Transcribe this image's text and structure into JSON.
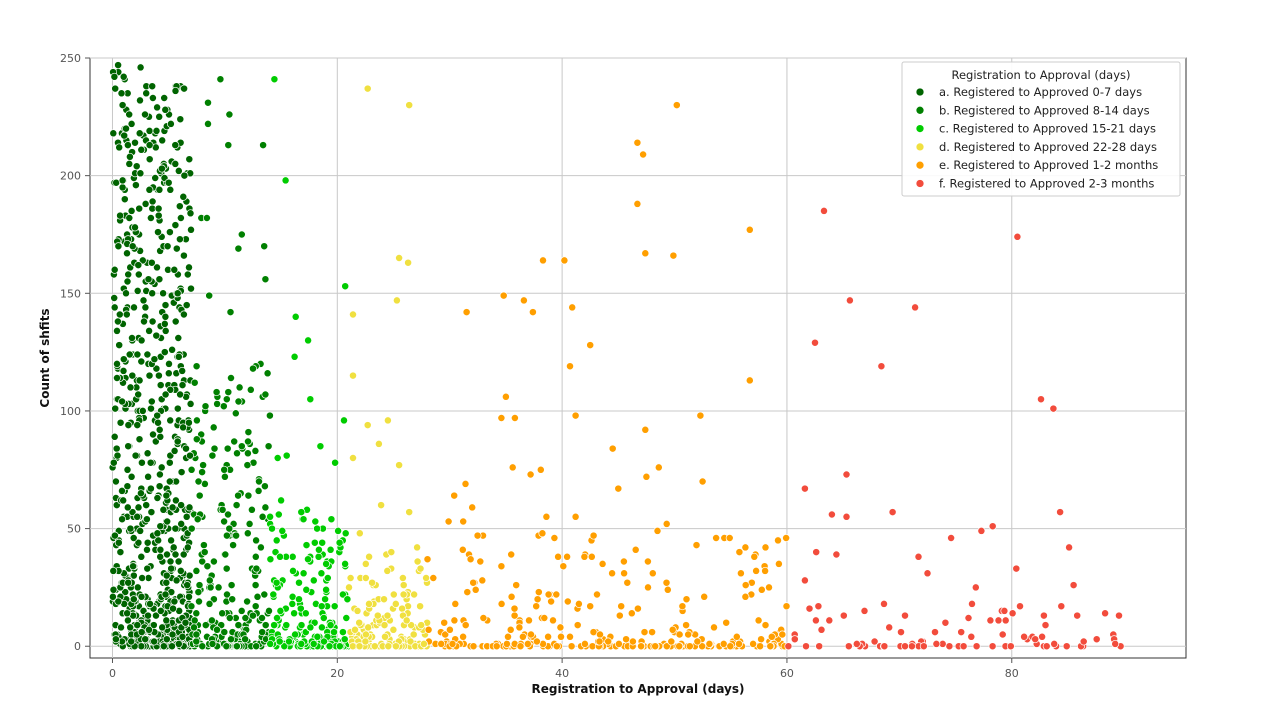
{
  "chart_data": {
    "type": "scatter",
    "title": "",
    "xlabel": "Registration to Approval (days)",
    "ylabel": "Count of shfits",
    "xlim": [
      -2,
      95.5
    ],
    "ylim": [
      -5,
      250
    ],
    "xticks": [
      0,
      20,
      40,
      60,
      80
    ],
    "yticks": [
      0,
      50,
      100,
      150,
      200,
      250
    ],
    "grid": true,
    "legend": {
      "title": "Registration to Approval (days)",
      "placement": "top-right"
    },
    "series": [
      {
        "name": "a. Registered to Approved 0-7 days",
        "color": "#006400",
        "x_range": [
          0,
          7
        ],
        "points": [
          [
            0.5,
            247
          ],
          [
            1.0,
            242
          ],
          [
            0.8,
            235
          ],
          [
            1.2,
            220
          ],
          [
            0.6,
            212
          ],
          [
            1.5,
            205
          ],
          [
            0.9,
            198
          ],
          [
            1.1,
            190
          ],
          [
            2.5,
            246
          ],
          [
            3.0,
            235
          ],
          [
            3.6,
            233
          ],
          [
            4.6,
            233
          ],
          [
            4.7,
            228
          ],
          [
            5.2,
            222
          ],
          [
            3.3,
            213
          ],
          [
            4.4,
            203
          ],
          [
            3.8,
            199
          ],
          [
            5.0,
            197
          ],
          [
            4.1,
            186
          ],
          [
            6.3,
            191
          ],
          [
            6.4,
            200
          ],
          [
            5.6,
            179
          ],
          [
            6.0,
            173
          ],
          [
            4.9,
            170
          ],
          [
            5.5,
            160
          ],
          [
            2.0,
            178
          ],
          [
            1.8,
            170
          ],
          [
            2.3,
            162
          ],
          [
            3.2,
            156
          ],
          [
            4.5,
            150
          ],
          [
            5.8,
            150
          ],
          [
            6.6,
            145
          ],
          [
            2.9,
            140
          ],
          [
            3.9,
            132
          ],
          [
            5.3,
            126
          ],
          [
            6.2,
            117
          ],
          [
            1.6,
            110
          ],
          [
            2.7,
            100
          ],
          [
            4.2,
            92
          ],
          [
            6.8,
            95
          ],
          [
            1.4,
            85
          ],
          [
            3.4,
            78
          ],
          [
            5.1,
            70
          ],
          [
            6.1,
            60
          ],
          [
            2.2,
            55
          ],
          [
            4.0,
            48
          ],
          [
            0.7,
            40
          ],
          [
            3.1,
            33
          ],
          [
            5.7,
            28
          ],
          [
            1.9,
            20
          ],
          [
            4.3,
            15
          ],
          [
            6.5,
            10
          ],
          [
            2.6,
            6
          ],
          [
            0.3,
            3
          ],
          [
            3.7,
            2
          ],
          [
            5.9,
            1
          ],
          [
            1.3,
            14
          ],
          [
            6.7,
            42
          ],
          [
            4.8,
            64
          ],
          [
            2.4,
            88
          ],
          [
            3.5,
            104
          ],
          [
            0.4,
            120
          ],
          [
            6.9,
            81
          ],
          [
            2.8,
            138
          ],
          [
            0.2,
            160
          ],
          [
            1.7,
            72
          ]
        ]
      },
      {
        "name": "b. Registered to Approved 8-14 days",
        "color": "#008000",
        "x_range": [
          7,
          14
        ],
        "points": [
          [
            8.5,
            231
          ],
          [
            8.5,
            222
          ],
          [
            9.6,
            241
          ],
          [
            10.4,
            226
          ],
          [
            10.3,
            213
          ],
          [
            13.4,
            213
          ],
          [
            7.9,
            182
          ],
          [
            8.4,
            182
          ],
          [
            11.5,
            175
          ],
          [
            13.5,
            170
          ],
          [
            11.2,
            169
          ],
          [
            13.6,
            156
          ],
          [
            8.6,
            149
          ],
          [
            10.5,
            142
          ],
          [
            12.5,
            118
          ],
          [
            10.3,
            108
          ],
          [
            13.8,
            116
          ],
          [
            11.5,
            85
          ],
          [
            14.0,
            98
          ],
          [
            9.0,
            93
          ],
          [
            7.5,
            88
          ],
          [
            12.0,
            77
          ],
          [
            13.0,
            66
          ],
          [
            9.8,
            58
          ],
          [
            11.0,
            47
          ],
          [
            8.2,
            40
          ],
          [
            12.8,
            33
          ],
          [
            10.6,
            26
          ],
          [
            7.7,
            19
          ],
          [
            13.3,
            12
          ],
          [
            9.3,
            7
          ],
          [
            11.8,
            3
          ],
          [
            8.9,
            1
          ],
          [
            12.2,
            52
          ],
          [
            10.0,
            72
          ]
        ]
      },
      {
        "name": "c. Registered to Approved 15-21 days",
        "color": "#00cc00",
        "x_range": [
          14,
          21
        ],
        "points": [
          [
            14.4,
            241
          ],
          [
            15.4,
            198
          ],
          [
            20.7,
            153
          ],
          [
            16.3,
            140
          ],
          [
            17.4,
            130
          ],
          [
            16.2,
            123
          ],
          [
            17.6,
            105
          ],
          [
            20.6,
            96
          ],
          [
            14.7,
            80
          ],
          [
            15.5,
            81
          ],
          [
            18.5,
            85
          ],
          [
            19.8,
            78
          ],
          [
            15.0,
            62
          ],
          [
            16.8,
            57
          ],
          [
            18.2,
            50
          ],
          [
            20.2,
            44
          ],
          [
            14.9,
            38
          ],
          [
            17.0,
            31
          ],
          [
            19.0,
            24
          ],
          [
            16.0,
            18
          ],
          [
            18.8,
            12
          ],
          [
            20.5,
            6
          ],
          [
            15.7,
            2
          ],
          [
            17.9,
            1
          ],
          [
            19.4,
            9
          ],
          [
            14.6,
            27
          ],
          [
            20.9,
            20
          ]
        ]
      },
      {
        "name": "d. Registered to Approved 22-28 days",
        "color": "#f0e040",
        "x_range": [
          21,
          28
        ],
        "points": [
          [
            22.7,
            237
          ],
          [
            26.4,
            230
          ],
          [
            25.5,
            165
          ],
          [
            26.3,
            163
          ],
          [
            25.3,
            147
          ],
          [
            21.4,
            141
          ],
          [
            21.4,
            115
          ],
          [
            24.5,
            96
          ],
          [
            22.7,
            94
          ],
          [
            23.7,
            86
          ],
          [
            25.5,
            77
          ],
          [
            21.4,
            80
          ],
          [
            23.9,
            60
          ],
          [
            26.4,
            57
          ],
          [
            22.0,
            48
          ],
          [
            24.8,
            40
          ],
          [
            27.4,
            33
          ],
          [
            23.1,
            27
          ],
          [
            25.9,
            22
          ],
          [
            21.8,
            15
          ],
          [
            24.2,
            9
          ],
          [
            26.8,
            5
          ],
          [
            22.5,
            2
          ],
          [
            27.7,
            1
          ],
          [
            23.6,
            13
          ],
          [
            25.2,
            18
          ],
          [
            27.1,
            42
          ]
        ]
      },
      {
        "name": "e. Registered to Approved 1-2 months",
        "color": "#ff9f00",
        "x_range": [
          28,
          60
        ],
        "points": [
          [
            50.2,
            230
          ],
          [
            46.7,
            214
          ],
          [
            47.2,
            209
          ],
          [
            46.7,
            188
          ],
          [
            47.4,
            167
          ],
          [
            56.7,
            177
          ],
          [
            49.9,
            166
          ],
          [
            40.2,
            164
          ],
          [
            38.3,
            164
          ],
          [
            34.8,
            149
          ],
          [
            36.6,
            147
          ],
          [
            37.4,
            142
          ],
          [
            40.9,
            144
          ],
          [
            31.5,
            142
          ],
          [
            42.5,
            128
          ],
          [
            40.7,
            119
          ],
          [
            56.7,
            113
          ],
          [
            35.0,
            106
          ],
          [
            34.6,
            97
          ],
          [
            35.8,
            97
          ],
          [
            41.2,
            98
          ],
          [
            52.3,
            98
          ],
          [
            47.4,
            92
          ],
          [
            44.5,
            84
          ],
          [
            48.6,
            76
          ],
          [
            47.5,
            72
          ],
          [
            35.6,
            76
          ],
          [
            37.2,
            73
          ],
          [
            38.1,
            75
          ],
          [
            52.5,
            70
          ],
          [
            31.4,
            69
          ],
          [
            45.0,
            67
          ],
          [
            30.4,
            64
          ],
          [
            32.0,
            59
          ],
          [
            49.3,
            52
          ],
          [
            38.6,
            55
          ],
          [
            41.2,
            55
          ],
          [
            29.9,
            53
          ],
          [
            31.2,
            53
          ],
          [
            53.7,
            46
          ],
          [
            56.3,
            42
          ],
          [
            57.1,
            38
          ],
          [
            55.9,
            31
          ],
          [
            45.8,
            27
          ],
          [
            50.7,
            17
          ],
          [
            38.8,
            22
          ],
          [
            34.6,
            34
          ],
          [
            42.8,
            47
          ],
          [
            33.0,
            12
          ],
          [
            36.2,
            8
          ],
          [
            39.9,
            4
          ],
          [
            44.1,
            2
          ],
          [
            48.0,
            6
          ],
          [
            53.1,
            1
          ],
          [
            58.4,
            25
          ],
          [
            30.5,
            18
          ],
          [
            46.2,
            14
          ],
          [
            54.6,
            10
          ],
          [
            59.2,
            45
          ],
          [
            43.6,
            35
          ]
        ]
      },
      {
        "name": "f. Registered to Approved 2-3 months",
        "color": "#f24c3c",
        "x_range": [
          60,
          90
        ],
        "points": [
          [
            63.3,
            185
          ],
          [
            80.5,
            174
          ],
          [
            65.6,
            147
          ],
          [
            71.4,
            144
          ],
          [
            62.5,
            129
          ],
          [
            68.4,
            119
          ],
          [
            82.6,
            105
          ],
          [
            83.7,
            101
          ],
          [
            65.3,
            73
          ],
          [
            61.6,
            67
          ],
          [
            69.4,
            57
          ],
          [
            84.3,
            57
          ],
          [
            64.0,
            56
          ],
          [
            78.3,
            51
          ],
          [
            65.3,
            55
          ],
          [
            71.7,
            38
          ],
          [
            62.6,
            40
          ],
          [
            64.4,
            39
          ],
          [
            74.6,
            46
          ],
          [
            77.3,
            49
          ],
          [
            85.1,
            42
          ],
          [
            80.4,
            33
          ],
          [
            72.5,
            31
          ],
          [
            76.8,
            25
          ],
          [
            85.5,
            26
          ],
          [
            61.6,
            28
          ],
          [
            62.8,
            17
          ],
          [
            66.9,
            15
          ],
          [
            70.5,
            13
          ],
          [
            78.1,
            11
          ],
          [
            83.0,
            9
          ],
          [
            88.3,
            14
          ],
          [
            60.7,
            3
          ],
          [
            67.8,
            2
          ],
          [
            73.3,
            1
          ],
          [
            81.1,
            4
          ],
          [
            86.4,
            2
          ],
          [
            89.2,
            1
          ],
          [
            75.5,
            6
          ],
          [
            69.1,
            8
          ]
        ]
      }
    ]
  }
}
